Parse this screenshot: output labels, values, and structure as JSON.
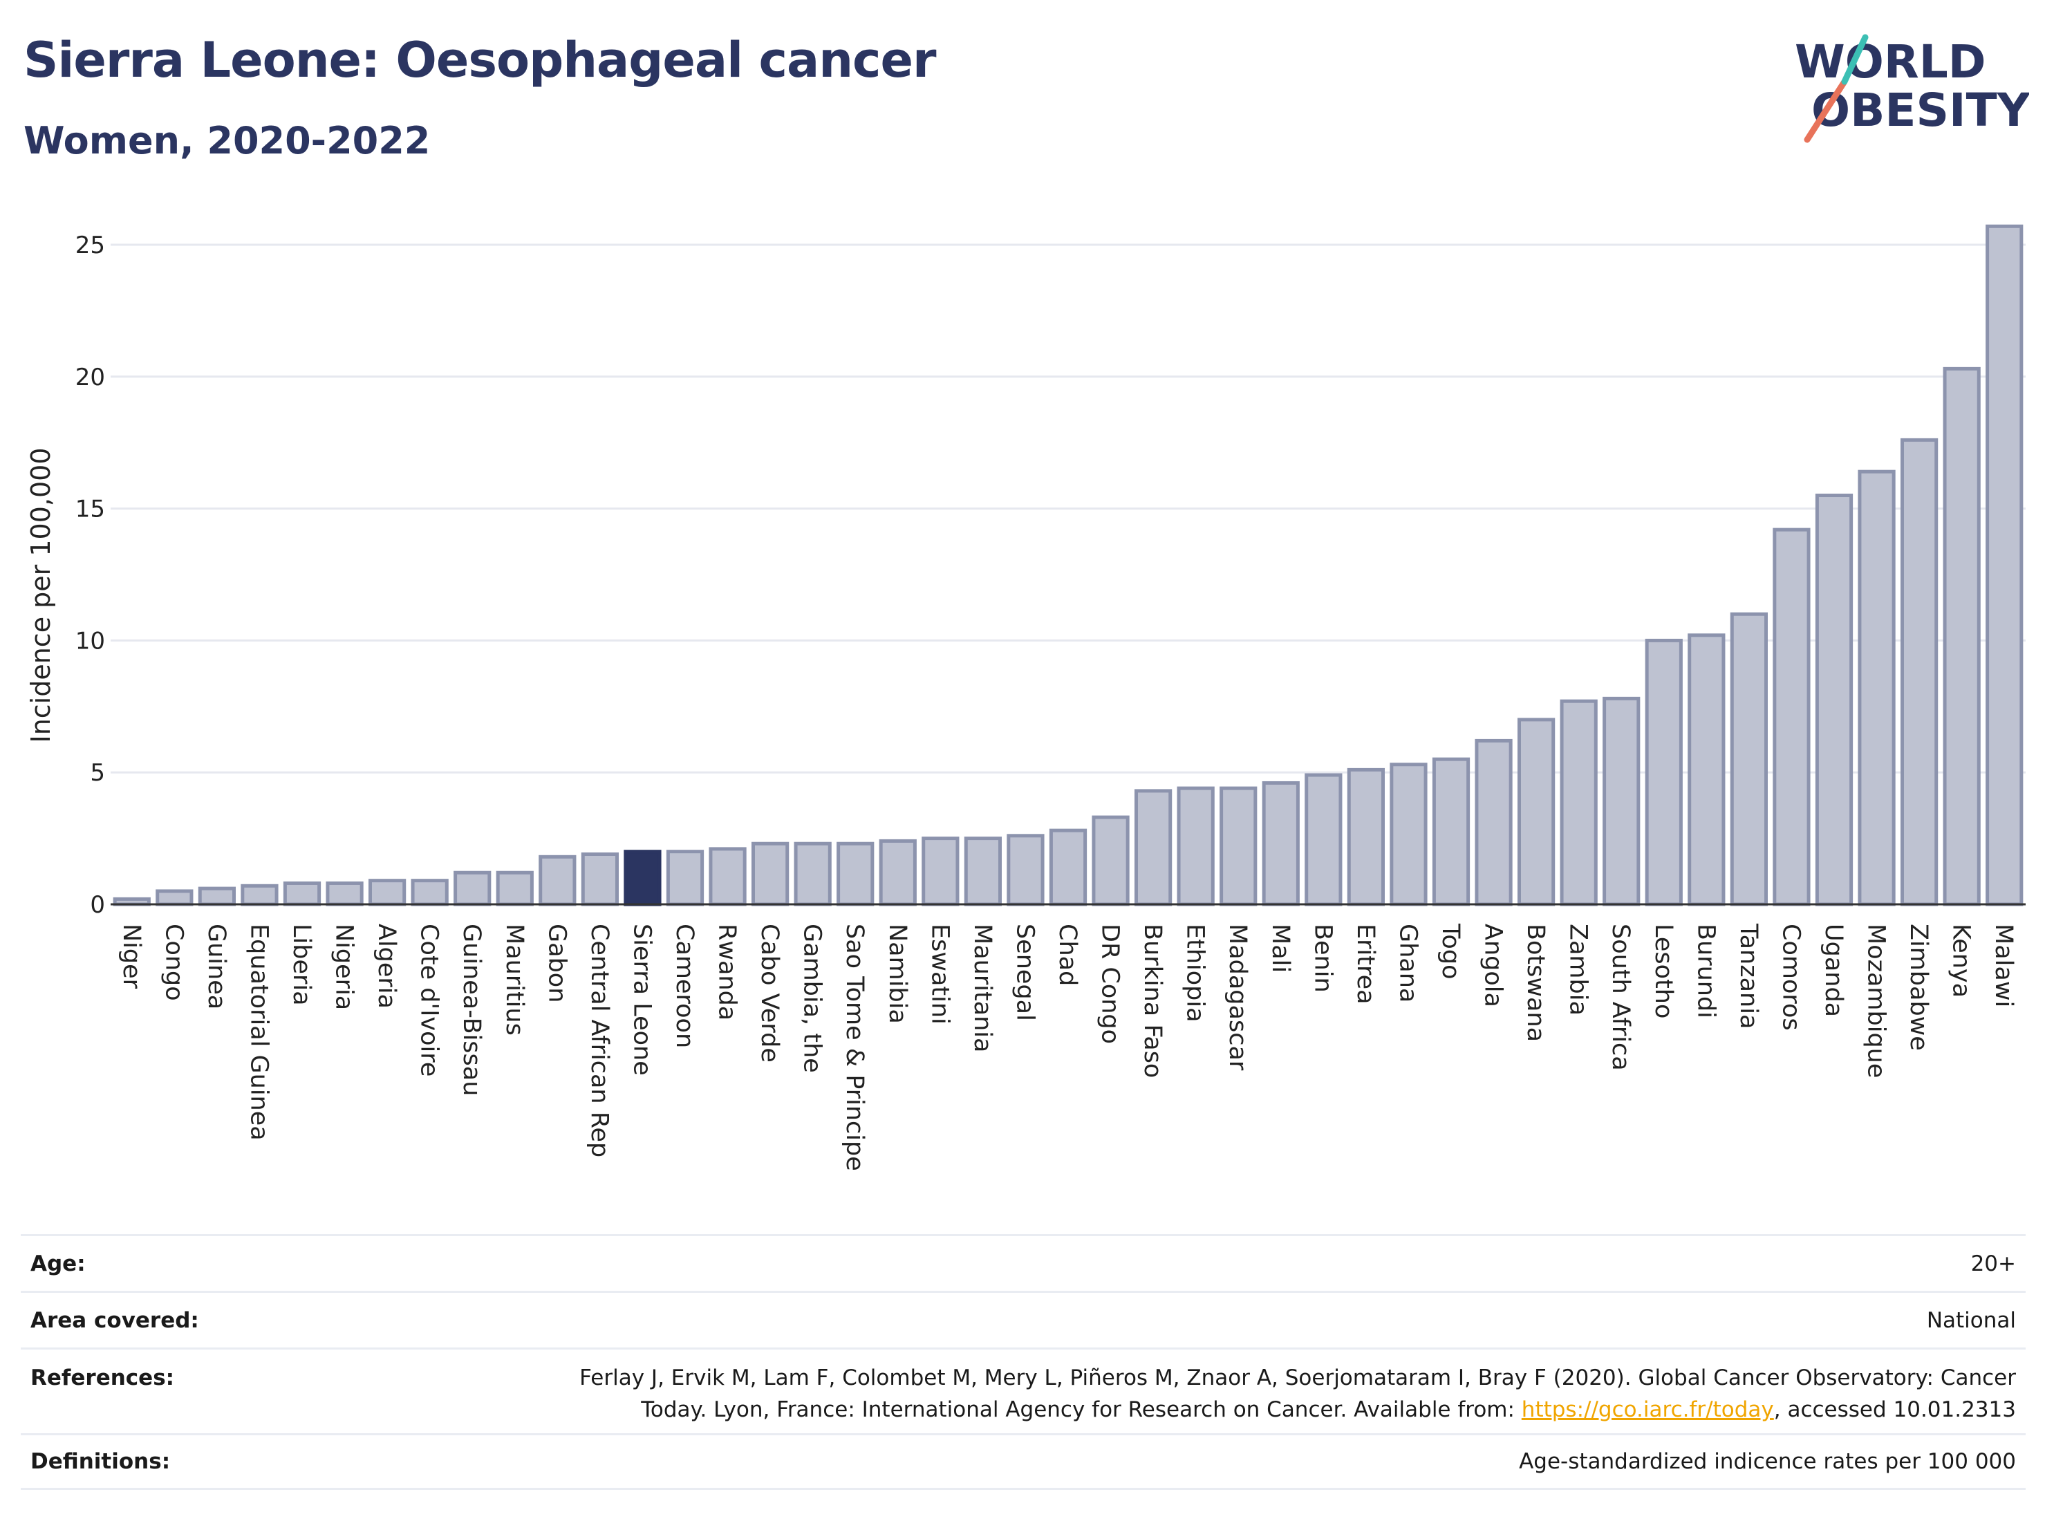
{
  "header": {
    "title": "Sierra Leone: Oesophageal cancer",
    "subtitle": "Women, 2020-2022"
  },
  "logo": {
    "line1": "WORLD",
    "line2": "OBESITY",
    "brand_color": "#2b3561",
    "accent_red": "#e8735a",
    "accent_teal": "#3cbfb4"
  },
  "colors": {
    "bar_fill": "#bec2d1",
    "bar_stroke": "#8c93ad",
    "highlight": "#2b3561",
    "grid": "#e6e8ef",
    "axis": "#333333"
  },
  "chart_data": {
    "type": "bar",
    "ylabel": "Incidence per 100,000",
    "xlabel": "",
    "ylim": [
      0,
      26
    ],
    "yticks": [
      0,
      5,
      10,
      15,
      20,
      25
    ],
    "grid": true,
    "highlight": "Sierra Leone",
    "categories": [
      "Niger",
      "Congo",
      "Guinea",
      "Equatorial Guinea",
      "Liberia",
      "Nigeria",
      "Algeria",
      "Cote d'Ivoire",
      "Guinea-Bissau",
      "Mauritius",
      "Gabon",
      "Central African Rep",
      "Sierra Leone",
      "Cameroon",
      "Rwanda",
      "Cabo Verde",
      "Gambia, the",
      "Sao Tome & Principe",
      "Namibia",
      "Eswatini",
      "Mauritania",
      "Senegal",
      "Chad",
      "DR Congo",
      "Burkina Faso",
      "Ethiopia",
      "Madagascar",
      "Mali",
      "Benin",
      "Eritrea",
      "Ghana",
      "Togo",
      "Angola",
      "Botswana",
      "Zambia",
      "South Africa",
      "Lesotho",
      "Burundi",
      "Tanzania",
      "Comoros",
      "Uganda",
      "Mozambique",
      "Zimbabwe",
      "Kenya",
      "Malawi"
    ],
    "values": [
      0.2,
      0.5,
      0.6,
      0.7,
      0.8,
      0.8,
      0.9,
      0.9,
      1.2,
      1.2,
      1.8,
      1.9,
      2.0,
      2.0,
      2.1,
      2.3,
      2.3,
      2.3,
      2.4,
      2.5,
      2.5,
      2.6,
      2.8,
      3.3,
      4.3,
      4.4,
      4.4,
      4.6,
      4.9,
      5.1,
      5.3,
      5.5,
      6.2,
      7.0,
      7.7,
      7.8,
      10.0,
      10.2,
      11.0,
      14.2,
      15.5,
      16.4,
      17.6,
      20.3,
      25.7
    ]
  },
  "meta": [
    {
      "label": "Age:",
      "value": "20+"
    },
    {
      "label": "Area covered:",
      "value": "National"
    },
    {
      "label": "References:",
      "value_line1": "Ferlay J, Ervik M, Lam F, Colombet M, Mery L, Piñeros M, Znaor A, Soerjomataram I, Bray F (2020). Global Cancer Observatory: Cancer",
      "value_line2_pre": "Today. Lyon, France: International Agency for Research on Cancer. Available from: ",
      "link": "https://gco.iarc.fr/today",
      "value_line2_post": ", accessed 10.01.2313"
    },
    {
      "label": "Definitions:",
      "value": "Age-standardized indicence rates per 100 000"
    }
  ]
}
